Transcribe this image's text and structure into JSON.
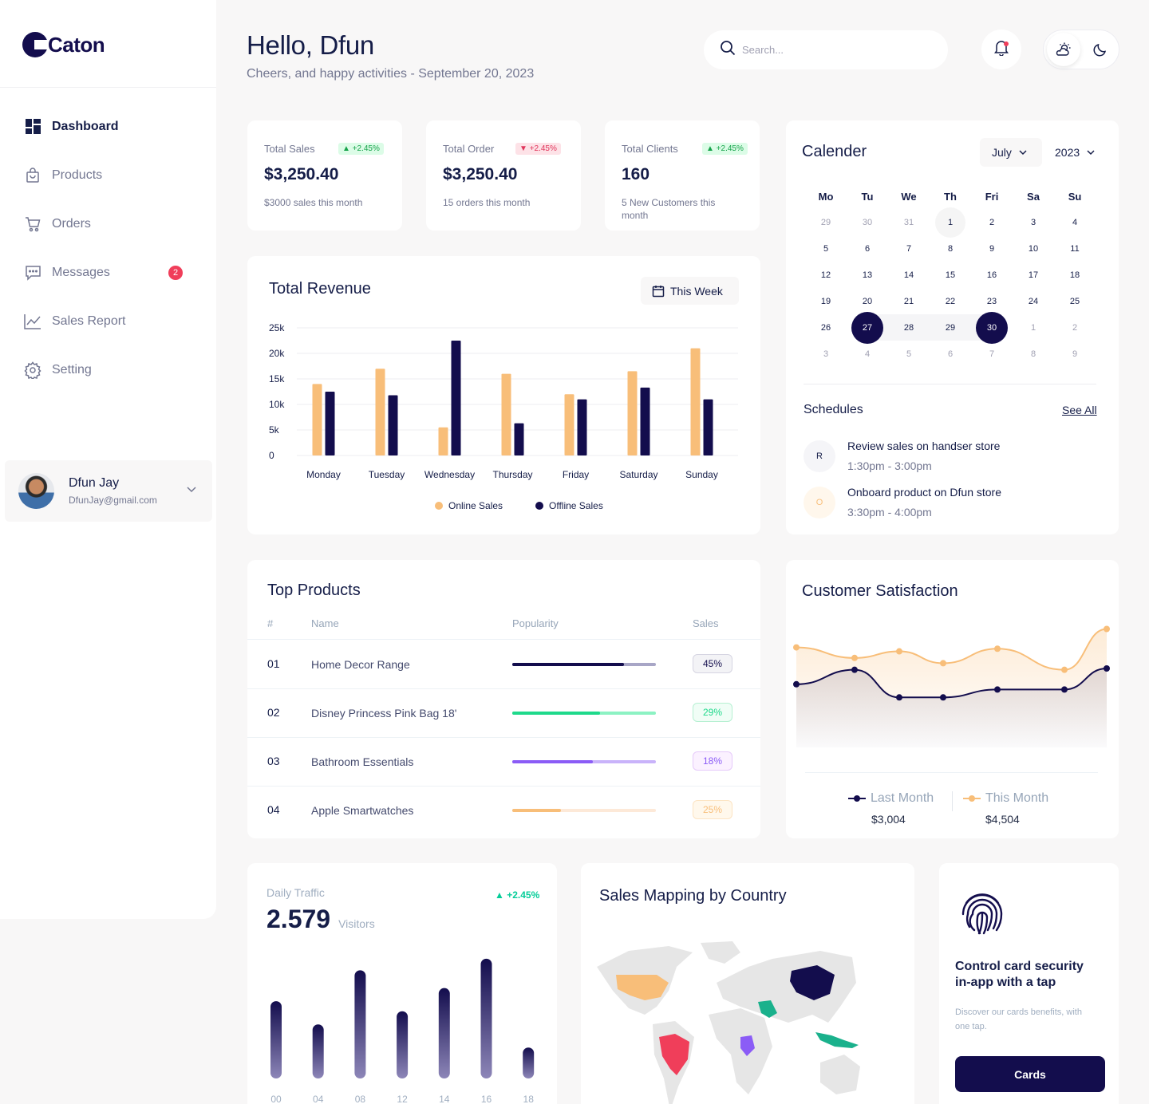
{
  "brand": {
    "name": "Caton"
  },
  "sidebar": {
    "items": [
      {
        "label": "Dashboard",
        "icon": "dashboard-icon"
      },
      {
        "label": "Products",
        "icon": "bag-icon"
      },
      {
        "label": "Orders",
        "icon": "cart-icon"
      },
      {
        "label": "Messages",
        "icon": "message-icon",
        "badge": "2"
      },
      {
        "label": "Sales Report",
        "icon": "chart-line-icon"
      },
      {
        "label": "Setting",
        "icon": "gear-icon"
      }
    ],
    "user": {
      "name": "Dfun Jay",
      "email": "DfunJay@gmail.com"
    }
  },
  "header": {
    "greeting": "Hello, Dfun",
    "subtitle": "Cheers, and happy activities - September 20, 2023",
    "search_placeholder": "Search..."
  },
  "stats": [
    {
      "label": "Total Sales",
      "badge": "+2.45%",
      "trend": "up",
      "value": "$3,250.40",
      "sub": "$3000 sales this month"
    },
    {
      "label": "Total Order",
      "badge": "+2.45%",
      "trend": "down",
      "value": "$3,250.40",
      "sub": "15 orders this month"
    },
    {
      "label": "Total Clients",
      "badge": "+2.45%",
      "trend": "up",
      "value": "160",
      "sub": "5 New Customers this month"
    }
  ],
  "revenue": {
    "title": "Total Revenue",
    "period": "This Week",
    "legend": [
      "Online Sales",
      "Offline Sales"
    ]
  },
  "chart_data": [
    {
      "type": "bar",
      "title": "Total Revenue",
      "categories": [
        "Monday",
        "Tuesday",
        "Wednesday",
        "Thursday",
        "Friday",
        "Saturday",
        "Sunday"
      ],
      "series": [
        {
          "name": "Online Sales",
          "values": [
            14000,
            17000,
            5500,
            16000,
            12000,
            16500,
            21000
          ],
          "color": "#f8be79"
        },
        {
          "name": "Offline Sales",
          "values": [
            12500,
            11800,
            22500,
            6300,
            11000,
            13300,
            11000
          ],
          "color": "#130d4d"
        }
      ],
      "y_ticks": [
        "25k",
        "20k",
        "15k",
        "10k",
        "5k",
        "0"
      ],
      "ylim": [
        0,
        25000
      ]
    },
    {
      "type": "line",
      "title": "Customer Satisfaction",
      "x": [
        0,
        1,
        2,
        3,
        4,
        5,
        6
      ],
      "series": [
        {
          "name": "This Month",
          "values": [
            3.8,
            3.4,
            3.65,
            3.2,
            3.75,
            2.95,
            4.5
          ],
          "color": "#f8be79"
        },
        {
          "name": "Last Month",
          "values": [
            2.4,
            2.95,
            1.9,
            1.9,
            2.2,
            2.2,
            3.0
          ],
          "color": "#130d4d"
        }
      ],
      "ylim": [
        0,
        5
      ]
    },
    {
      "type": "bar",
      "title": "Daily Traffic",
      "categories": [
        "00",
        "04",
        "08",
        "12",
        "14",
        "16",
        "18"
      ],
      "values": [
        100,
        70,
        140,
        87,
        117,
        155,
        40
      ],
      "ylim": [
        0,
        160
      ]
    }
  ],
  "calendar": {
    "title": "Calender",
    "month": "July",
    "year": "2023",
    "weekdays": [
      "Mo",
      "Tu",
      "We",
      "Th",
      "Fri",
      "Sa",
      "Su"
    ],
    "weeks": [
      [
        "29",
        "30",
        "31",
        "1",
        "2",
        "3",
        "4"
      ],
      [
        "5",
        "6",
        "7",
        "8",
        "9",
        "10",
        "11"
      ],
      [
        "12",
        "13",
        "14",
        "15",
        "16",
        "17",
        "18"
      ],
      [
        "19",
        "20",
        "21",
        "22",
        "23",
        "24",
        "25"
      ],
      [
        "26",
        "27",
        "28",
        "29",
        "30",
        "1",
        "2"
      ],
      [
        "3",
        "4",
        "5",
        "6",
        "7",
        "8",
        "9"
      ]
    ],
    "schedules_title": "Schedules",
    "see_all": "See All",
    "schedules": [
      {
        "initial": "R",
        "title": "Review sales on handser store",
        "time": "1:30pm - 3:00pm"
      },
      {
        "initial": "O",
        "title": "Onboard product on Dfun store",
        "time": "3:30pm - 4:00pm"
      }
    ]
  },
  "top_products": {
    "title": "Top Products",
    "columns": [
      "#",
      "Name",
      "Popularity",
      "Sales"
    ],
    "rows": [
      {
        "num": "01",
        "name": "Home Decor Range",
        "sales": "45%",
        "popularity": 0.78,
        "color": "#130d4d",
        "track": "#a8a6c6",
        "pill_bg": "#f3f3f6",
        "pill_border": "#d6d5e2",
        "pill_text": "#130d4d"
      },
      {
        "num": "02",
        "name": "Disney Princess Pink Bag 18'",
        "sales": "29%",
        "popularity": 0.61,
        "color": "#1ed98b",
        "track": "#8cf2c3",
        "pill_bg": "#f0fdf6",
        "pill_border": "#b6f0d2",
        "pill_text": "#1ed98b"
      },
      {
        "num": "03",
        "name": "Bathroom Essentials",
        "sales": "18%",
        "popularity": 0.56,
        "color": "#8b5cf6",
        "track": "#c9b3fa",
        "pill_bg": "#fbf1ff",
        "pill_border": "#e6cafa",
        "pill_text": "#8b5cf6"
      },
      {
        "num": "04",
        "name": "Apple Smartwatches",
        "sales": "25%",
        "popularity": 0.34,
        "color": "#f8be79",
        "track": "#fde9d8",
        "pill_bg": "#fff8ec",
        "pill_border": "#fce4c3",
        "pill_text": "#f8be79"
      }
    ]
  },
  "satisfaction": {
    "title": "Customer Satisfaction",
    "last_label": "Last Month",
    "last_value": "$3,004",
    "this_label": "This Month",
    "this_value": "$4,504"
  },
  "traffic": {
    "label": "Daily Traffic",
    "badge": "+2.45%",
    "value": "2.579",
    "unit": "Visitors"
  },
  "map": {
    "title": "Sales Mapping by Country",
    "colors": {
      "usa": "#f8be79",
      "brazil": "#f03e5a",
      "china": "#130d4d",
      "saudi": "#1ab18c",
      "congo": "#8b5cf6",
      "indonesia": "#1ab18c",
      "land": "#e6e6e6"
    }
  },
  "security": {
    "title": "Control card security in-app with a tap",
    "subtitle": "Discover our cards benefits, with one tap.",
    "button": "Cards"
  }
}
